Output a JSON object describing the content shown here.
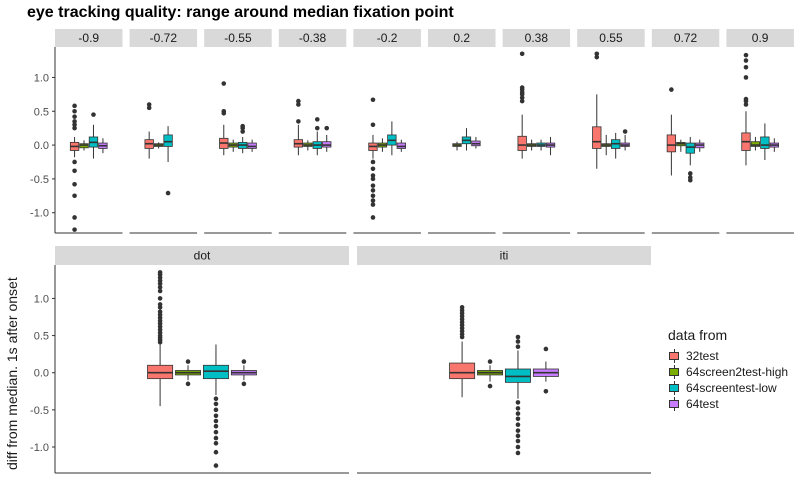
{
  "title": "eye tracking quality: range around median fixation point",
  "ylabel": "diff from median. 1s after onset",
  "legend": {
    "title": "data from",
    "items": [
      {
        "label": "32test",
        "color": "#F8766D"
      },
      {
        "label": "64screen2test-high",
        "color": "#7CAE00"
      },
      {
        "label": "64screentest-low",
        "color": "#00BFC4"
      },
      {
        "label": "64test",
        "color": "#C77CFF"
      }
    ]
  },
  "chart_data": [
    {
      "type": "box",
      "panels": [
        "-0.9",
        "-0.72",
        "-0.55",
        "-0.38",
        "-0.2",
        "0.2",
        "0.38",
        "0.55",
        "0.72",
        "0.9"
      ],
      "groups": [
        "32test",
        "64screen2test-high",
        "64screentest-low",
        "64test"
      ],
      "ylim": [
        -1.3,
        1.45
      ],
      "yticks": [
        "1.0",
        "0.5",
        "0.0",
        "-0.5",
        "-1.0"
      ],
      "ytick_values": [
        1.0,
        0.5,
        0.0,
        -0.5,
        -1.0
      ],
      "boxes": [
        [
          {
            "group": "32test",
            "q1": -0.08,
            "median": -0.02,
            "q3": 0.04,
            "whisker_low": -0.18,
            "whisker_high": 0.12,
            "outliers": [
              0.58,
              0.5,
              0.42,
              0.35,
              0.3,
              0.25,
              -0.25,
              -0.38,
              -0.58,
              -0.75,
              -1.07,
              -1.25
            ]
          },
          {
            "group": "64screen2test-high",
            "q1": -0.04,
            "median": 0.0,
            "q3": 0.02,
            "whisker_low": -0.08,
            "whisker_high": 0.07,
            "outliers": []
          },
          {
            "group": "64screentest-low",
            "q1": -0.03,
            "median": 0.04,
            "q3": 0.12,
            "whisker_low": -0.2,
            "whisker_high": 0.3,
            "outliers": [
              0.45
            ]
          },
          {
            "group": "64test",
            "q1": -0.05,
            "median": -0.01,
            "q3": 0.03,
            "whisker_low": -0.12,
            "whisker_high": 0.1,
            "outliers": []
          }
        ],
        [
          {
            "group": "32test",
            "q1": -0.05,
            "median": 0.02,
            "q3": 0.08,
            "whisker_low": -0.2,
            "whisker_high": 0.2,
            "outliers": [
              0.6,
              0.55
            ]
          },
          {
            "group": "64screen2test-high",
            "q1": -0.02,
            "median": 0.0,
            "q3": 0.02,
            "whisker_low": -0.05,
            "whisker_high": 0.04,
            "outliers": []
          },
          {
            "group": "64screentest-low",
            "q1": -0.02,
            "median": 0.05,
            "q3": 0.15,
            "whisker_low": -0.25,
            "whisker_high": 0.28,
            "outliers": [
              -0.71
            ]
          },
          {
            "group": "64test",
            "q1": null,
            "median": null,
            "q3": null,
            "whisker_low": null,
            "whisker_high": null,
            "outliers": []
          }
        ],
        [
          {
            "group": "32test",
            "q1": -0.05,
            "median": 0.03,
            "q3": 0.1,
            "whisker_low": -0.15,
            "whisker_high": 0.3,
            "outliers": [
              0.91,
              0.5,
              0.47
            ]
          },
          {
            "group": "64screen2test-high",
            "q1": -0.03,
            "median": 0.0,
            "q3": 0.03,
            "whisker_low": -0.1,
            "whisker_high": 0.08,
            "outliers": []
          },
          {
            "group": "64screentest-low",
            "q1": -0.05,
            "median": 0.0,
            "q3": 0.04,
            "whisker_low": -0.12,
            "whisker_high": 0.12,
            "outliers": [
              0.28,
              0.25,
              0.2
            ]
          },
          {
            "group": "64test",
            "q1": -0.05,
            "median": -0.02,
            "q3": 0.03,
            "whisker_low": -0.1,
            "whisker_high": 0.08,
            "outliers": []
          }
        ],
        [
          {
            "group": "32test",
            "q1": -0.03,
            "median": 0.02,
            "q3": 0.08,
            "whisker_low": -0.15,
            "whisker_high": 0.3,
            "outliers": [
              0.65,
              0.6,
              0.35
            ]
          },
          {
            "group": "64screen2test-high",
            "q1": -0.02,
            "median": 0.0,
            "q3": 0.03,
            "whisker_low": -0.08,
            "whisker_high": 0.07,
            "outliers": []
          },
          {
            "group": "64screentest-low",
            "q1": -0.05,
            "median": 0.0,
            "q3": 0.05,
            "whisker_low": -0.15,
            "whisker_high": 0.2,
            "outliers": [
              0.38,
              0.25
            ]
          },
          {
            "group": "64test",
            "q1": -0.03,
            "median": 0.0,
            "q3": 0.05,
            "whisker_low": -0.1,
            "whisker_high": 0.15,
            "outliers": [
              0.25
            ]
          }
        ],
        [
          {
            "group": "32test",
            "q1": -0.08,
            "median": -0.02,
            "q3": 0.03,
            "whisker_low": -0.2,
            "whisker_high": 0.15,
            "outliers": [
              0.67,
              0.3,
              -0.25,
              -0.35,
              -0.45,
              -0.5,
              -0.6,
              -0.67,
              -0.75,
              -0.82,
              -0.88,
              -1.07
            ]
          },
          {
            "group": "64screen2test-high",
            "q1": -0.03,
            "median": 0.0,
            "q3": 0.03,
            "whisker_low": -0.1,
            "whisker_high": 0.1,
            "outliers": []
          },
          {
            "group": "64screentest-low",
            "q1": 0.0,
            "median": 0.07,
            "q3": 0.15,
            "whisker_low": -0.15,
            "whisker_high": 0.35,
            "outliers": []
          },
          {
            "group": "64test",
            "q1": -0.05,
            "median": -0.02,
            "q3": 0.03,
            "whisker_low": -0.1,
            "whisker_high": 0.08,
            "outliers": []
          }
        ],
        [
          {
            "group": "32test",
            "q1": null,
            "median": null,
            "q3": null,
            "whisker_low": null,
            "whisker_high": null,
            "outliers": []
          },
          {
            "group": "64screen2test-high",
            "q1": -0.02,
            "median": 0.0,
            "q3": 0.02,
            "whisker_low": -0.08,
            "whisker_high": 0.05,
            "outliers": []
          },
          {
            "group": "64screentest-low",
            "q1": 0.02,
            "median": 0.07,
            "q3": 0.12,
            "whisker_low": -0.08,
            "whisker_high": 0.25,
            "outliers": []
          },
          {
            "group": "64test",
            "q1": -0.01,
            "median": 0.02,
            "q3": 0.06,
            "whisker_low": -0.05,
            "whisker_high": 0.12,
            "outliers": []
          }
        ],
        [
          {
            "group": "32test",
            "q1": -0.08,
            "median": 0.0,
            "q3": 0.13,
            "whisker_low": -0.2,
            "whisker_high": 0.45,
            "outliers": [
              1.35,
              0.85,
              0.82,
              0.78,
              0.75,
              0.7,
              0.65
            ]
          },
          {
            "group": "64screen2test-high",
            "q1": -0.02,
            "median": 0.0,
            "q3": 0.02,
            "whisker_low": -0.08,
            "whisker_high": 0.08,
            "outliers": []
          },
          {
            "group": "64screentest-low",
            "q1": -0.02,
            "median": 0.0,
            "q3": 0.03,
            "whisker_low": -0.08,
            "whisker_high": 0.08,
            "outliers": []
          },
          {
            "group": "64test",
            "q1": -0.03,
            "median": 0.0,
            "q3": 0.03,
            "whisker_low": -0.15,
            "whisker_high": 0.12,
            "outliers": []
          }
        ],
        [
          {
            "group": "32test",
            "q1": -0.05,
            "median": 0.05,
            "q3": 0.27,
            "whisker_low": -0.35,
            "whisker_high": 0.75,
            "outliers": [
              1.35,
              1.3
            ]
          },
          {
            "group": "64screen2test-high",
            "q1": -0.02,
            "median": 0.0,
            "q3": 0.02,
            "whisker_low": -0.15,
            "whisker_high": 0.15,
            "outliers": []
          },
          {
            "group": "64screentest-low",
            "q1": -0.05,
            "median": 0.02,
            "q3": 0.08,
            "whisker_low": -0.2,
            "whisker_high": 0.18,
            "outliers": []
          },
          {
            "group": "64test",
            "q1": -0.02,
            "median": 0.0,
            "q3": 0.03,
            "whisker_low": -0.08,
            "whisker_high": 0.15,
            "outliers": [
              0.2
            ]
          }
        ],
        [
          {
            "group": "32test",
            "q1": -0.1,
            "median": 0.0,
            "q3": 0.15,
            "whisker_low": -0.45,
            "whisker_high": 0.45,
            "outliers": [
              0.82
            ]
          },
          {
            "group": "64screen2test-high",
            "q1": -0.01,
            "median": 0.02,
            "q3": 0.04,
            "whisker_low": -0.1,
            "whisker_high": 0.08,
            "outliers": []
          },
          {
            "group": "64screentest-low",
            "q1": -0.12,
            "median": -0.03,
            "q3": 0.03,
            "whisker_low": -0.3,
            "whisker_high": 0.12,
            "outliers": [
              -0.42,
              -0.48,
              -0.52
            ]
          },
          {
            "group": "64test",
            "q1": -0.04,
            "median": 0.0,
            "q3": 0.03,
            "whisker_low": -0.1,
            "whisker_high": 0.08,
            "outliers": []
          }
        ],
        [
          {
            "group": "32test",
            "q1": -0.08,
            "median": 0.05,
            "q3": 0.18,
            "whisker_low": -0.3,
            "whisker_high": 0.5,
            "outliers": [
              1.33,
              1.25,
              1.15,
              1.0,
              0.68,
              0.65,
              0.6
            ]
          },
          {
            "group": "64screen2test-high",
            "q1": -0.02,
            "median": 0.0,
            "q3": 0.05,
            "whisker_low": -0.08,
            "whisker_high": 0.12,
            "outliers": []
          },
          {
            "group": "64screentest-low",
            "q1": -0.05,
            "median": 0.0,
            "q3": 0.12,
            "whisker_low": -0.22,
            "whisker_high": 0.32,
            "outliers": []
          },
          {
            "group": "64test",
            "q1": -0.03,
            "median": 0.0,
            "q3": 0.03,
            "whisker_low": -0.1,
            "whisker_high": 0.1,
            "outliers": []
          }
        ]
      ]
    },
    {
      "type": "box",
      "panels": [
        "dot",
        "iti"
      ],
      "groups": [
        "32test",
        "64screen2test-high",
        "64screentest-low",
        "64test"
      ],
      "ylim": [
        -1.35,
        1.45
      ],
      "yticks": [
        "1.0",
        "0.5",
        "0.0",
        "-0.5",
        "-1.0"
      ],
      "ytick_values": [
        1.0,
        0.5,
        0.0,
        -0.5,
        -1.0
      ],
      "boxes": [
        [
          {
            "group": "32test",
            "q1": -0.08,
            "median": 0.0,
            "q3": 0.1,
            "whisker_low": -0.45,
            "whisker_high": 0.38,
            "outliers": [
              1.35,
              1.32,
              1.28,
              1.24,
              1.2,
              1.15,
              1.1,
              1.0,
              0.92,
              0.88,
              0.82,
              0.78,
              0.74,
              0.7,
              0.66,
              0.62,
              0.58,
              0.54,
              0.5,
              0.47,
              0.44,
              0.41
            ]
          },
          {
            "group": "64screen2test-high",
            "q1": -0.03,
            "median": 0.0,
            "q3": 0.03,
            "whisker_low": -0.1,
            "whisker_high": 0.1,
            "outliers": [
              0.15,
              -0.15
            ]
          },
          {
            "group": "64screentest-low",
            "q1": -0.08,
            "median": 0.02,
            "q3": 0.1,
            "whisker_low": -0.3,
            "whisker_high": 0.38,
            "outliers": [
              -0.35,
              -0.42,
              -0.5,
              -0.58,
              -0.65,
              -0.72,
              -0.8,
              -0.88,
              -0.95,
              -1.07,
              -1.25
            ]
          },
          {
            "group": "64test",
            "q1": -0.03,
            "median": 0.0,
            "q3": 0.03,
            "whisker_low": -0.1,
            "whisker_high": 0.1,
            "outliers": [
              0.15,
              -0.15
            ]
          }
        ],
        [
          {
            "group": "32test",
            "q1": -0.08,
            "median": 0.0,
            "q3": 0.13,
            "whisker_low": -0.33,
            "whisker_high": 0.42,
            "outliers": [
              0.88,
              0.84,
              0.8,
              0.76,
              0.72,
              0.68,
              0.64,
              0.6,
              0.56,
              0.52,
              0.48
            ]
          },
          {
            "group": "64screen2test-high",
            "q1": -0.03,
            "median": 0.0,
            "q3": 0.03,
            "whisker_low": -0.12,
            "whisker_high": 0.1,
            "outliers": [
              0.15,
              -0.18
            ]
          },
          {
            "group": "64screentest-low",
            "q1": -0.13,
            "median": -0.05,
            "q3": 0.05,
            "whisker_low": -0.35,
            "whisker_high": 0.3,
            "outliers": [
              0.48,
              0.42,
              0.35,
              -0.4,
              -0.48,
              -0.55,
              -0.62,
              -0.7,
              -0.78,
              -0.85,
              -0.92,
              -1.0,
              -1.08
            ]
          },
          {
            "group": "64test",
            "q1": -0.05,
            "median": 0.0,
            "q3": 0.05,
            "whisker_low": -0.12,
            "whisker_high": 0.15,
            "outliers": [
              0.32,
              -0.25
            ]
          }
        ]
      ]
    }
  ]
}
